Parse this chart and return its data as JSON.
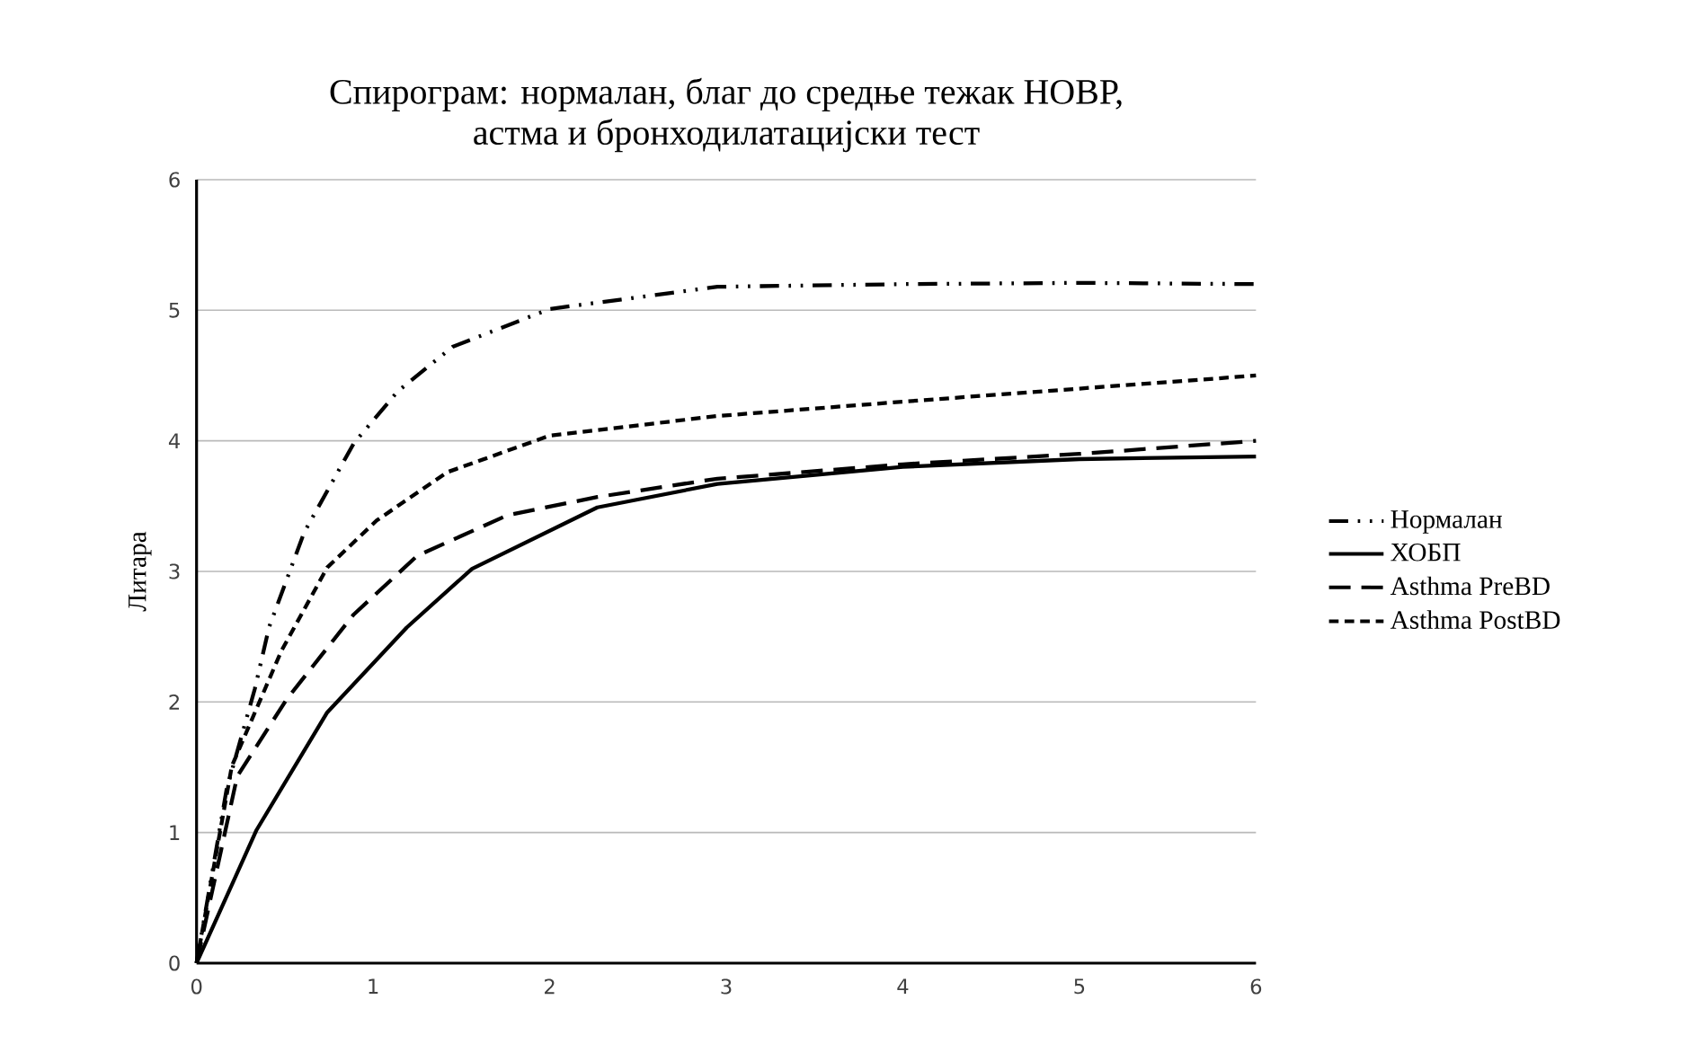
{
  "chart_data": {
    "type": "line",
    "title": "Спирограм: нормалан, благ до средње тежак НОВР,\nастма и бронходилатацијски тест",
    "ylabel": "Литара",
    "xlim": [
      0,
      6
    ],
    "ylim": [
      0,
      6
    ],
    "xticks": [
      0,
      1,
      2,
      3,
      4,
      5,
      6
    ],
    "yticks": [
      0,
      1,
      2,
      3,
      4,
      5,
      6
    ],
    "grid": "y",
    "legend": "right",
    "marker": "none",
    "series": [
      {
        "name": "Нормалан",
        "color": "#000000",
        "line_style": "dashdotdot",
        "x": [
          0,
          0.17,
          0.33,
          0.41,
          0.61,
          0.89,
          1.14,
          1.45,
          2.0,
          2.95,
          4,
          5,
          6
        ],
        "values": [
          0,
          1.33,
          2.1,
          2.57,
          3.3,
          3.98,
          4.38,
          4.72,
          5.01,
          5.18,
          5.2,
          5.21,
          5.2
        ]
      },
      {
        "name": "ХОБП",
        "color": "#000000",
        "line_style": "solid",
        "x": [
          0,
          0.34,
          0.74,
          1.19,
          1.56,
          2.27,
          2.95,
          4,
          5,
          6
        ],
        "values": [
          0,
          1.02,
          1.92,
          2.57,
          3.02,
          3.49,
          3.67,
          3.8,
          3.86,
          3.88
        ]
      },
      {
        "name": "Asthma PreBD",
        "color": "#000000",
        "line_style": "longdash",
        "x": [
          0,
          0.23,
          0.51,
          0.89,
          1.25,
          1.76,
          2.27,
          2.95,
          4,
          5,
          6
        ],
        "values": [
          0,
          1.43,
          2.02,
          2.67,
          3.12,
          3.43,
          3.57,
          3.71,
          3.82,
          3.9,
          4.0
        ]
      },
      {
        "name": "Asthma PostBD",
        "color": "#000000",
        "line_style": "dashed",
        "x": [
          0,
          0.2,
          0.48,
          0.74,
          1.02,
          1.42,
          2.0,
          2.95,
          4,
          5,
          6
        ],
        "values": [
          0,
          1.51,
          2.39,
          3.03,
          3.39,
          3.76,
          4.04,
          4.19,
          4.3,
          4.4,
          4.5
        ]
      }
    ]
  }
}
